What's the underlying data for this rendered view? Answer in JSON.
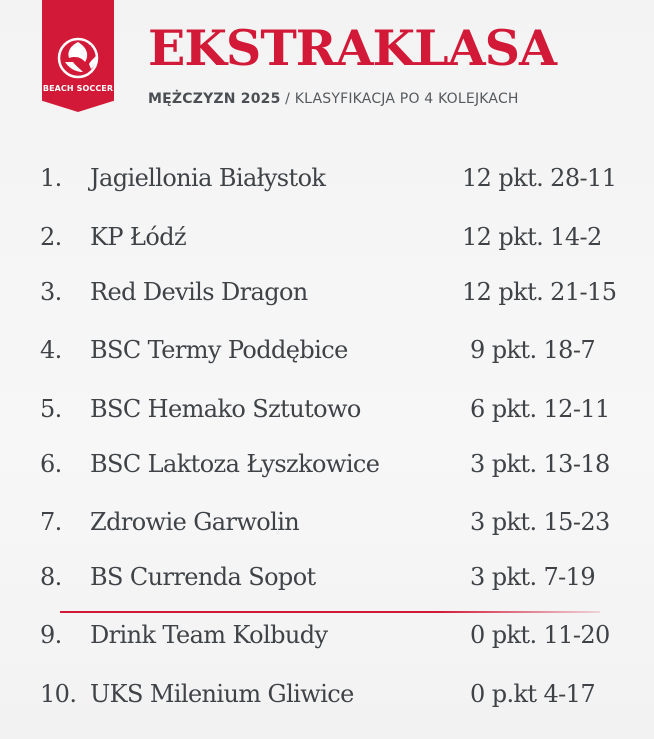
{
  "header": {
    "badge_text": "BEACH SOCCER",
    "badge_icon": "beach-soccer-ball-icon",
    "title": "EKSTRAKLASA",
    "subtitle_strong": "MĘŻCZYZN 2025",
    "subtitle_rest": " / KLASYFIKACJA PO 4 KOLEJKACH"
  },
  "colors": {
    "accent": "#d21a38",
    "text": "#3f4347"
  },
  "standings": [
    {
      "pos": "1.",
      "team": "Jagiellonia Białystok",
      "points": "12 pkt. 28-11"
    },
    {
      "pos": "2.",
      "team": "KP Łódź",
      "points": "12 pkt. 14-2"
    },
    {
      "pos": "3.",
      "team": "Red Devils Dragon",
      "points": "12 pkt. 21-15"
    },
    {
      "pos": "4.",
      "team": "BSC Termy Poddębice",
      "points": "9 pkt. 18-7"
    },
    {
      "pos": "5.",
      "team": "BSC Hemako Sztutowo",
      "points": "6 pkt. 12-11"
    },
    {
      "pos": "6.",
      "team": "BSC Laktoza Łyszkowice",
      "points": "3 pkt. 13-18"
    },
    {
      "pos": "7.",
      "team": "Zdrowie Garwolin",
      "points": "3 pkt. 15-23"
    },
    {
      "pos": "8.",
      "team": "BS Currenda Sopot",
      "points": "3 pkt. 7-19"
    },
    {
      "pos": "9.",
      "team": "Drink Team Kolbudy",
      "points": "0 pkt. 11-20"
    },
    {
      "pos": "10.",
      "team": "UKS Milenium Gliwice",
      "points": "0 p.kt 4-17"
    }
  ]
}
